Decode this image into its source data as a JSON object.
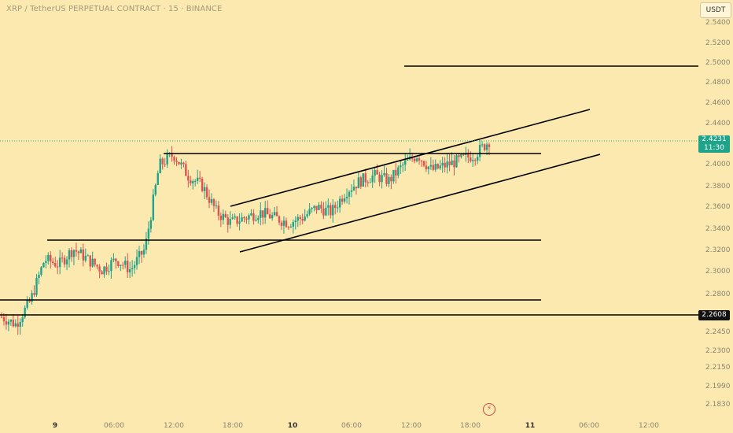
{
  "header": {
    "symbol_title": "XRP / TetherUS PERPETUAL CONTRACT · 15 · BINANCE",
    "currency_button": "USDT"
  },
  "price_axis": {
    "labels": [
      "2.5400",
      "2.5200",
      "2.5000",
      "2.4800",
      "2.4600",
      "2.4400",
      "2.4000",
      "2.3800",
      "2.3600",
      "2.3400",
      "2.3200",
      "2.3000",
      "2.2800",
      "2.2450",
      "2.2300",
      "2.2150",
      "2.1990",
      "2.1830"
    ],
    "current_price": {
      "price": "2.4231",
      "countdown": "11:30",
      "color": "#1fa38a"
    },
    "level_label": "2.2608"
  },
  "time_axis": {
    "labels": [
      "9",
      "06:00",
      "12:00",
      "18:00",
      "10",
      "06:00",
      "12:00",
      "18:00",
      "11",
      "06:00",
      "12:00"
    ]
  },
  "colors": {
    "background": "#fce9b0",
    "bullish": "#1fa38a",
    "bearish": "#e0524f",
    "drawing": "#000000",
    "axis_text": "#8a8470"
  },
  "drawings": {
    "horizontal_levels": [
      2.4955,
      2.4125,
      2.3302,
      2.2766,
      2.2608
    ],
    "channel": {
      "upper": [
        [
          2.3608,
          2.4542
        ]
      ],
      "lower": [
        [
          2.3182,
          2.4118
        ]
      ]
    }
  },
  "chart_data": {
    "type": "candlestick",
    "symbol": "XRP / TetherUS PERPETUAL CONTRACT",
    "interval": "15",
    "exchange": "BINANCE",
    "x_ticks": [
      "9",
      "06:00",
      "12:00",
      "18:00",
      "10",
      "06:00",
      "12:00",
      "18:00",
      "11",
      "06:00",
      "12:00"
    ],
    "y_ticks": [
      2.54,
      2.52,
      2.5,
      2.48,
      2.46,
      2.44,
      2.4,
      2.38,
      2.36,
      2.34,
      2.32,
      2.3,
      2.28,
      2.245,
      2.23,
      2.215,
      2.199,
      2.183
    ],
    "last_price": 2.4231,
    "approx_trend_close": [
      2.255,
      2.248,
      2.27,
      2.31,
      2.305,
      2.32,
      2.31,
      2.3,
      2.31,
      2.3,
      2.32,
      2.4,
      2.41,
      2.39,
      2.38,
      2.355,
      2.345,
      2.35,
      2.355,
      2.35,
      2.345,
      2.35,
      2.36,
      2.355,
      2.375,
      2.385,
      2.39,
      2.385,
      2.4,
      2.41,
      2.395,
      2.4,
      2.405,
      2.41,
      2.4231
    ]
  }
}
